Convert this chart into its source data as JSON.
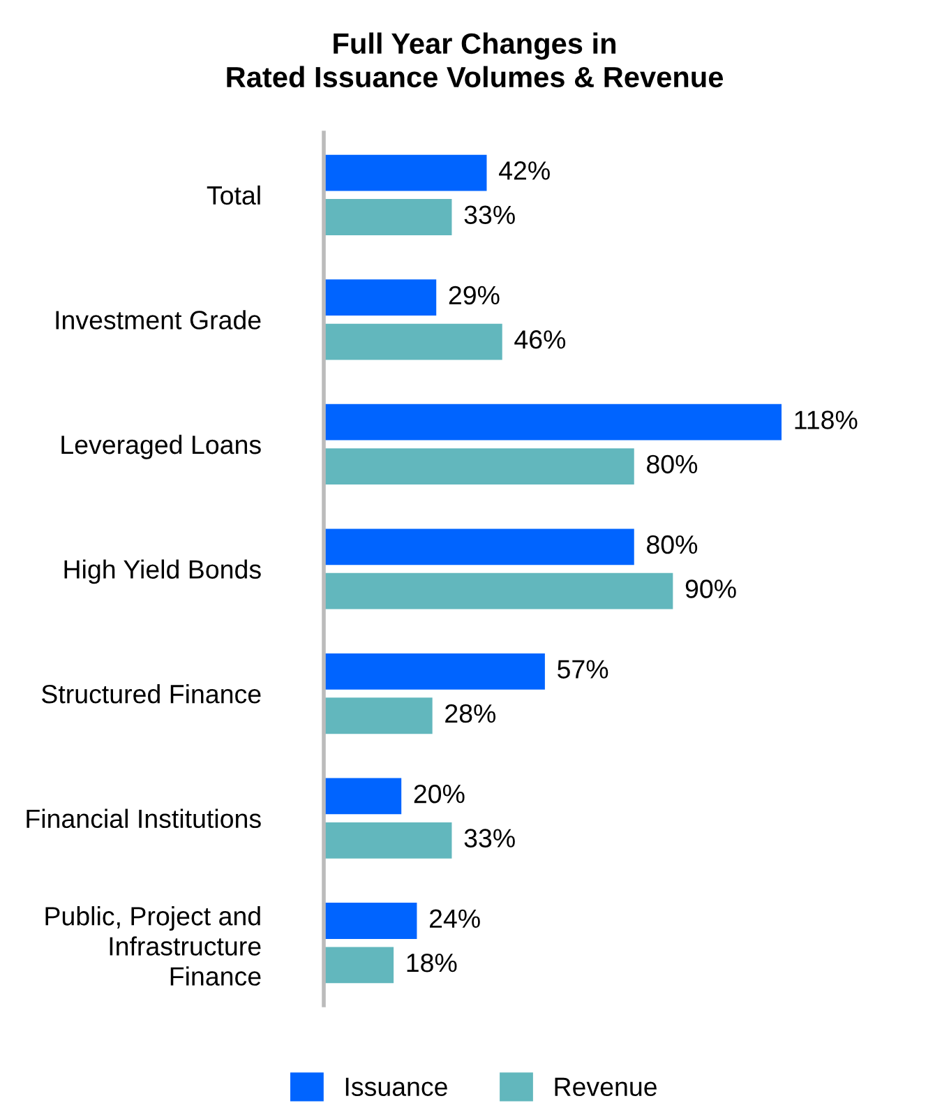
{
  "chart_data": {
    "type": "bar",
    "orientation": "horizontal",
    "title": "Full Year Changes in\nRated Issuance Volumes & Revenue",
    "categories": [
      "Total",
      "Investment Grade",
      "Leveraged Loans",
      "High Yield Bonds",
      "Structured Finance",
      "Financial Institutions",
      "Public, Project and\nInfrastructure\nFinance"
    ],
    "series": [
      {
        "name": "Issuance",
        "color": "#0064ff",
        "values": [
          42,
          29,
          118,
          80,
          57,
          20,
          24
        ],
        "value_labels": [
          "42%",
          "29%",
          "118%",
          "80%",
          "57%",
          "20%",
          "24%"
        ]
      },
      {
        "name": "Revenue",
        "color": "#62b7bd",
        "values": [
          33,
          46,
          80,
          90,
          28,
          33,
          18
        ],
        "value_labels": [
          "33%",
          "46%",
          "80%",
          "90%",
          "28%",
          "33%",
          "18%"
        ]
      }
    ],
    "legend": "bottom",
    "tick_labels": "y",
    "grid": false
  }
}
